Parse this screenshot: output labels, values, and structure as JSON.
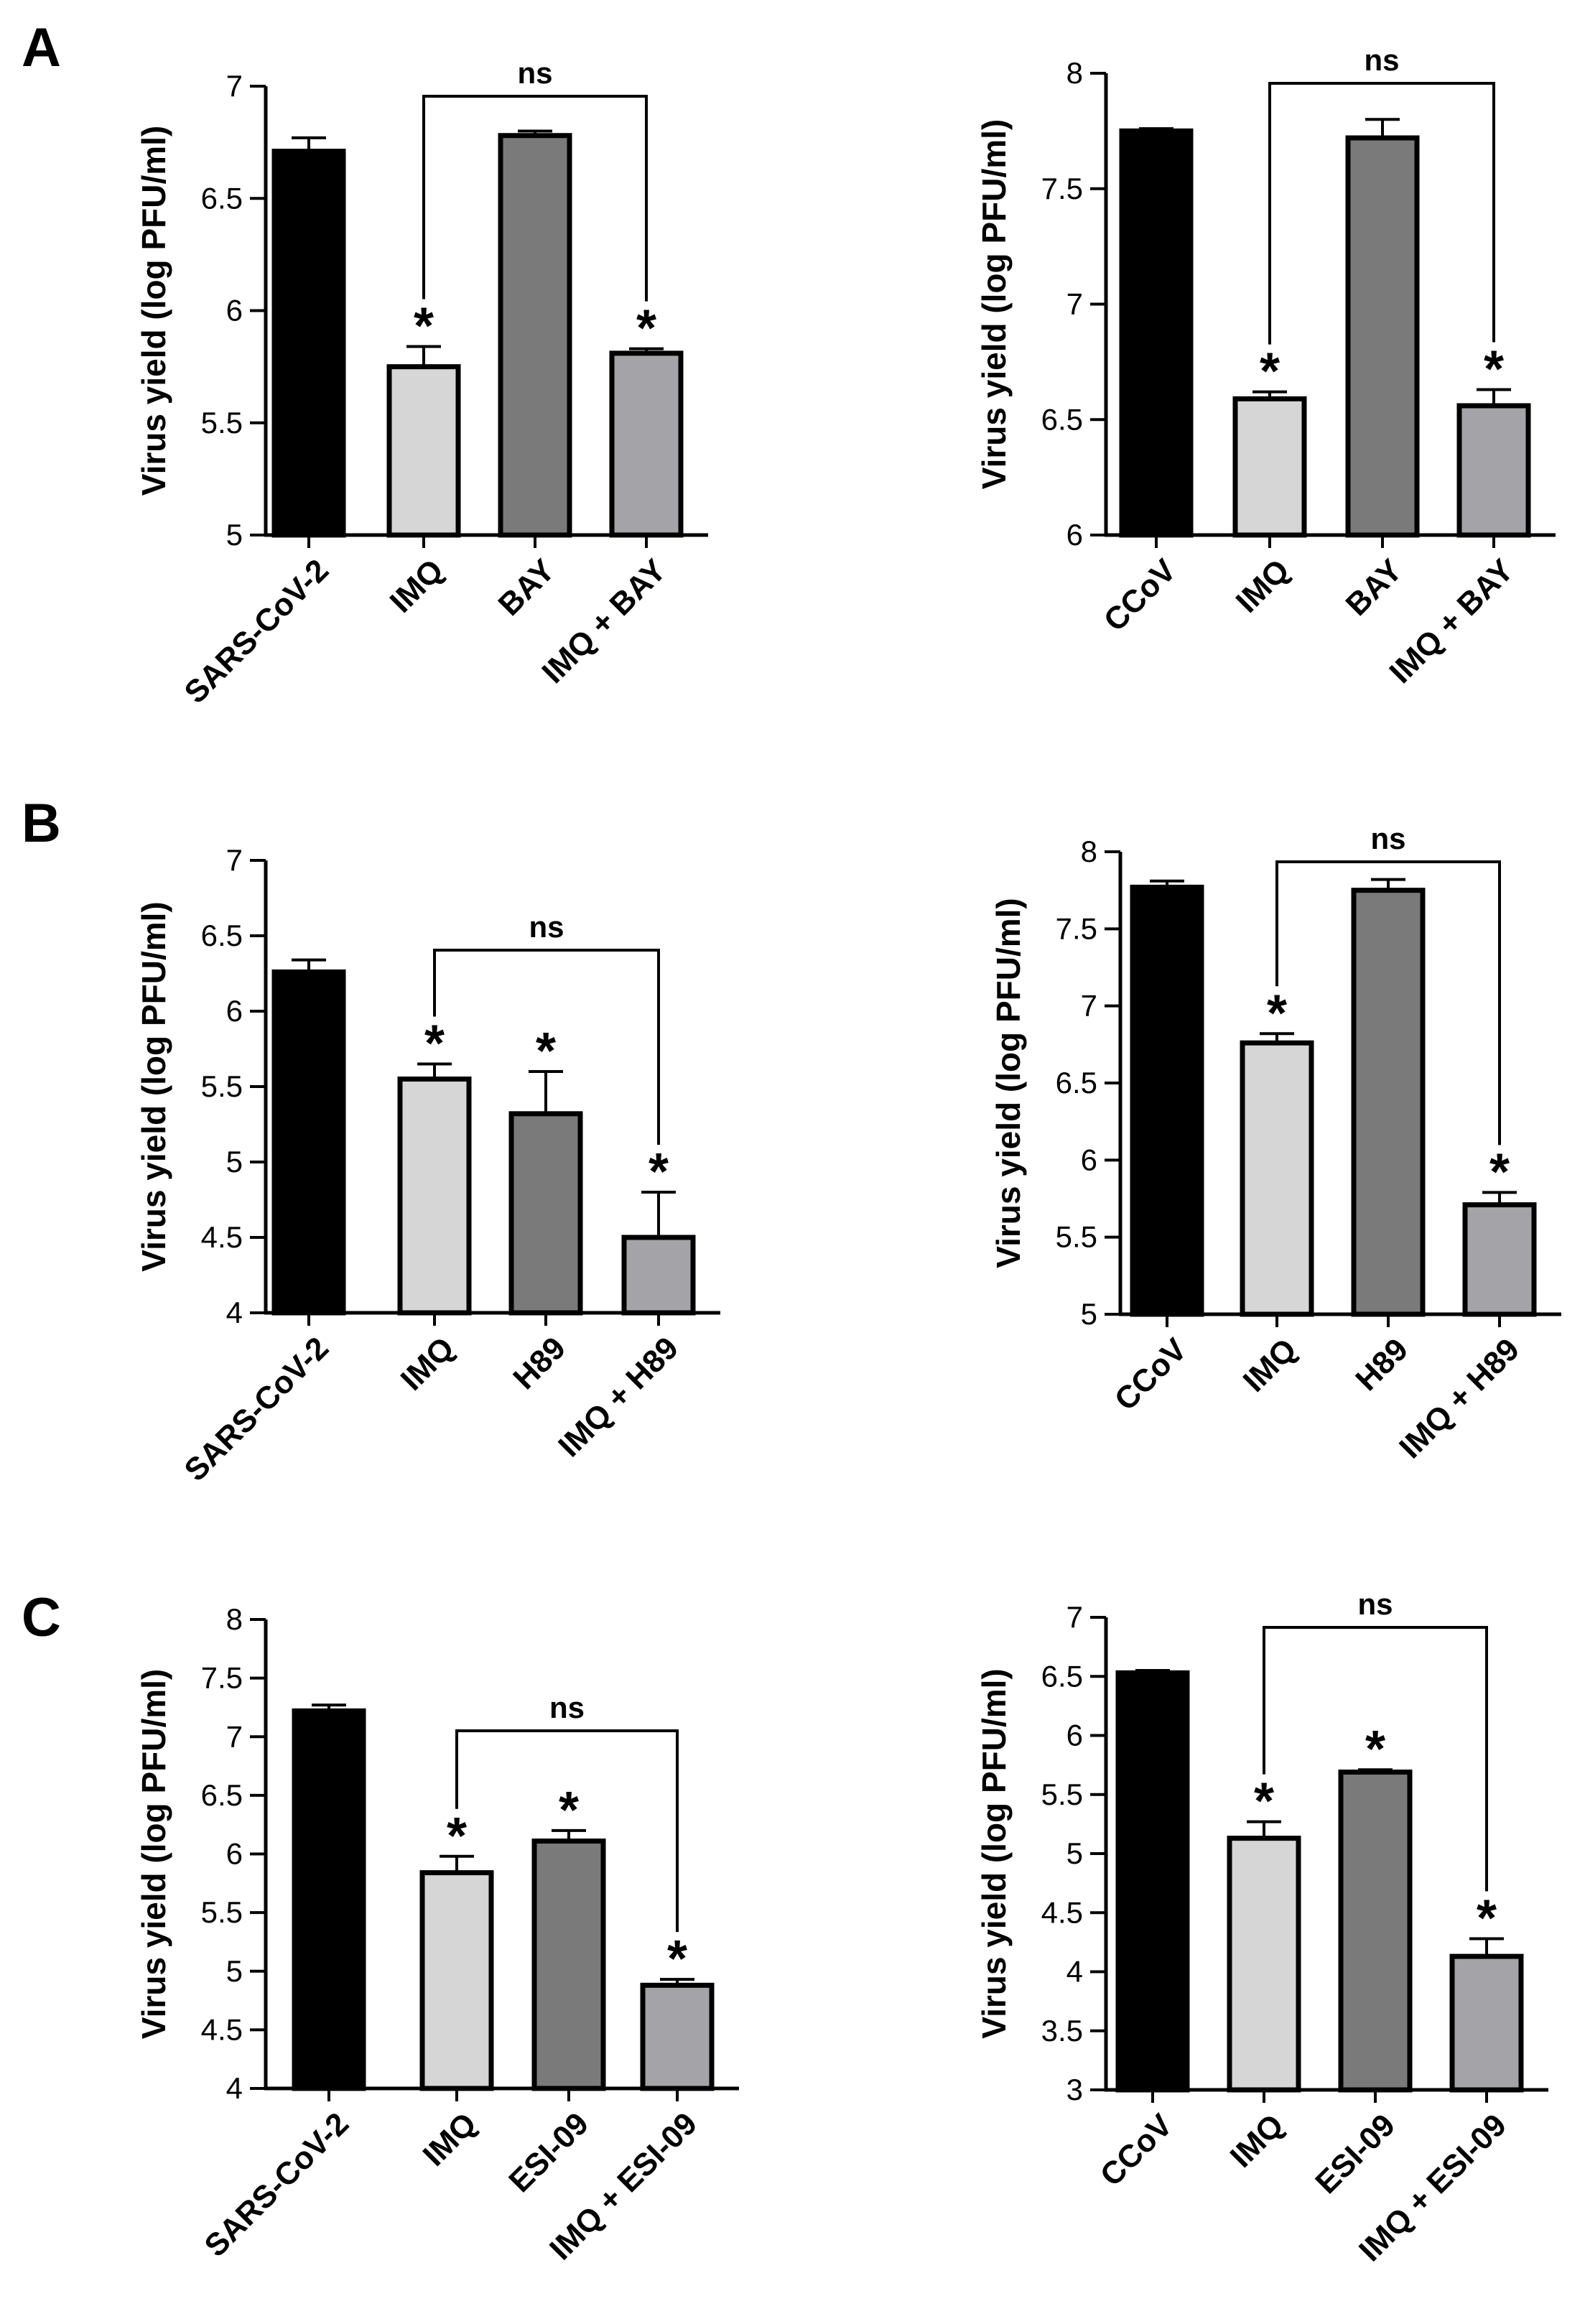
{
  "panels": [
    {
      "label": "A"
    },
    {
      "label": "B"
    },
    {
      "label": "C"
    }
  ],
  "styles": {
    "bar_colors": [
      "#000000",
      "#d6d6d6",
      "#7a7a7a",
      "#a3a3a8"
    ],
    "line_color": "#000000"
  },
  "chart_data": [
    {
      "type": "bar",
      "categories": [
        "SARS-CoV-2",
        "IMQ",
        "BAY",
        "IMQ + BAY"
      ],
      "values": [
        6.71,
        5.75,
        6.78,
        5.81
      ],
      "errors": [
        0.06,
        0.09,
        0.02,
        0.02
      ],
      "significance": [
        "",
        "*",
        "",
        "*"
      ],
      "bracket": {
        "from": 1,
        "to": 3,
        "label": "ns"
      },
      "ylabel": "Virus yield (log PFU/ml)",
      "ylim": [
        5,
        7
      ],
      "yticks": [
        "5",
        "5.5",
        "6",
        "6.5",
        "7"
      ]
    },
    {
      "type": "bar",
      "categories": [
        "CCoV",
        "IMQ",
        "BAY",
        "IMQ + BAY"
      ],
      "values": [
        7.75,
        6.59,
        7.72,
        6.56
      ],
      "errors": [
        0.01,
        0.03,
        0.08,
        0.07
      ],
      "significance": [
        "",
        "*",
        "",
        "*"
      ],
      "bracket": {
        "from": 1,
        "to": 3,
        "label": "ns"
      },
      "ylabel": "Virus yield (log PFU/ml)",
      "ylim": [
        6,
        8
      ],
      "yticks": [
        "6",
        "6.5",
        "7",
        "7.5",
        "8"
      ]
    },
    {
      "type": "bar",
      "categories": [
        "SARS-CoV-2",
        "IMQ",
        "H89",
        "IMQ + H89"
      ],
      "values": [
        6.26,
        5.55,
        5.32,
        4.5
      ],
      "errors": [
        0.08,
        0.1,
        0.28,
        0.3
      ],
      "significance": [
        "",
        "*",
        "*",
        "*"
      ],
      "bracket": {
        "from": 1,
        "to": 3,
        "label": "ns"
      },
      "ylabel": "Virus yield (log PFU/ml)",
      "ylim": [
        4,
        7
      ],
      "yticks": [
        "4",
        "4.5",
        "5",
        "5.5",
        "6",
        "6.5",
        "7"
      ]
    },
    {
      "type": "bar",
      "categories": [
        "CCoV",
        "IMQ",
        "H89",
        "IMQ + H89"
      ],
      "values": [
        7.77,
        6.76,
        7.75,
        5.71
      ],
      "errors": [
        0.04,
        0.06,
        0.07,
        0.08
      ],
      "significance": [
        "",
        "*",
        "",
        "*"
      ],
      "bracket": {
        "from": 1,
        "to": 3,
        "label": "ns"
      },
      "ylabel": "Virus yield (log PFU/ml)",
      "ylim": [
        5,
        8
      ],
      "yticks": [
        "5",
        "5.5",
        "6",
        "6.5",
        "7",
        "7.5",
        "8"
      ]
    },
    {
      "type": "bar",
      "categories": [
        "SARS-CoV-2",
        "IMQ",
        "ESI-09",
        "IMQ + ESI-09"
      ],
      "values": [
        7.22,
        5.84,
        6.11,
        4.88
      ],
      "errors": [
        0.05,
        0.14,
        0.09,
        0.05
      ],
      "significance": [
        "",
        "*",
        "*",
        "*"
      ],
      "bracket": {
        "from": 1,
        "to": 3,
        "label": "ns"
      },
      "ylabel": "Virus yield (log PFU/ml)",
      "ylim": [
        4,
        8
      ],
      "yticks": [
        "4",
        "4.5",
        "5",
        "5.5",
        "6",
        "6.5",
        "7",
        "7.5",
        "8"
      ]
    },
    {
      "type": "bar",
      "categories": [
        "CCoV",
        "IMQ",
        "ESI-09",
        "IMQ + ESI-09"
      ],
      "values": [
        6.53,
        5.13,
        5.69,
        4.13
      ],
      "errors": [
        0.02,
        0.14,
        0.02,
        0.15
      ],
      "significance": [
        "",
        "*",
        "*",
        "*"
      ],
      "bracket": {
        "from": 1,
        "to": 3,
        "label": "ns"
      },
      "ylabel": "Virus yield (log PFU/ml)",
      "ylim": [
        3,
        7
      ],
      "yticks": [
        "3",
        "3.5",
        "4",
        "4.5",
        "5",
        "5.5",
        "6",
        "6.5",
        "7"
      ]
    }
  ]
}
